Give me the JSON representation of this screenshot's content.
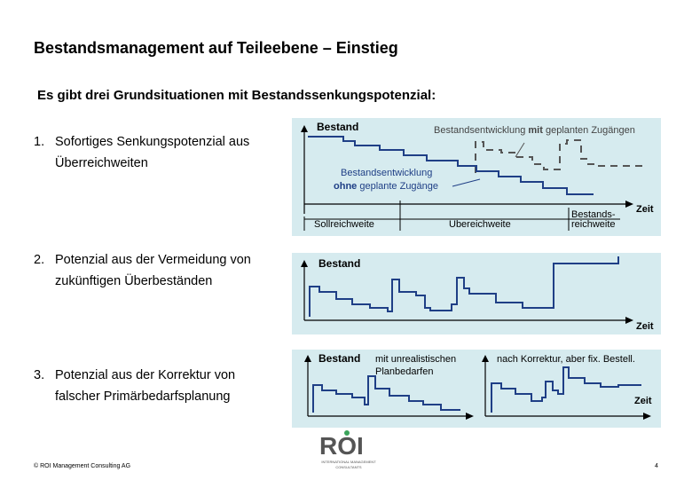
{
  "title": "Bestandsmanagement auf Teileebene – Einstieg",
  "subtitle": "Es gibt drei Grundsituationen mit Bestandssenkungspotenzial:",
  "items": [
    {
      "number": "1.",
      "line1": "Sofortiges Senkungspotenzial aus",
      "line2": "Überreichweiten"
    },
    {
      "number": "2.",
      "line1": "Potenzial aus der Vermeidung von",
      "line2": "zukünftigen Überbeständen"
    },
    {
      "number": "3.",
      "line1": "Potenzial aus der Korrektur von",
      "line2": "falscher Primärbedarfsplanung"
    }
  ],
  "diagram1": {
    "y_label": "Bestand",
    "x_label": "Zeit",
    "annotation_with_prefix": "Bestandsentwicklung ",
    "annotation_with_emph": "mit",
    "annotation_with_suffix": " geplanten Zugängen",
    "annotation_without_line1": "Bestandsentwicklung",
    "annotation_without_emph": "ohne",
    "annotation_without_suffix": " geplante Zugänge",
    "segment_1": "Sollreichweite",
    "segment_2": "Übereichweite",
    "segment_3_line1": "Bestands-",
    "segment_3_line2": "reichweite"
  },
  "diagram2": {
    "y_label": "Bestand",
    "x_label": "Zeit"
  },
  "diagram3": {
    "y_label": "Bestand",
    "x_label": "Zeit",
    "left_caption_line1": "mit unrealistischen",
    "left_caption_line2": "Planbedarfen",
    "right_caption": "nach Korrektur, aber fix. Bestell."
  },
  "logo": {
    "text": "ROI",
    "subline1": "INTERNATIONAL MANAGEMENT",
    "subline2": "CONSULTANTS"
  },
  "footer": "© ROI Management Consulting AG",
  "page_number": "4",
  "colors": {
    "panel_bg": "#d6ebef",
    "curve": "#1f3f86",
    "dashed_curve": "#555555",
    "axis": "#000000"
  }
}
